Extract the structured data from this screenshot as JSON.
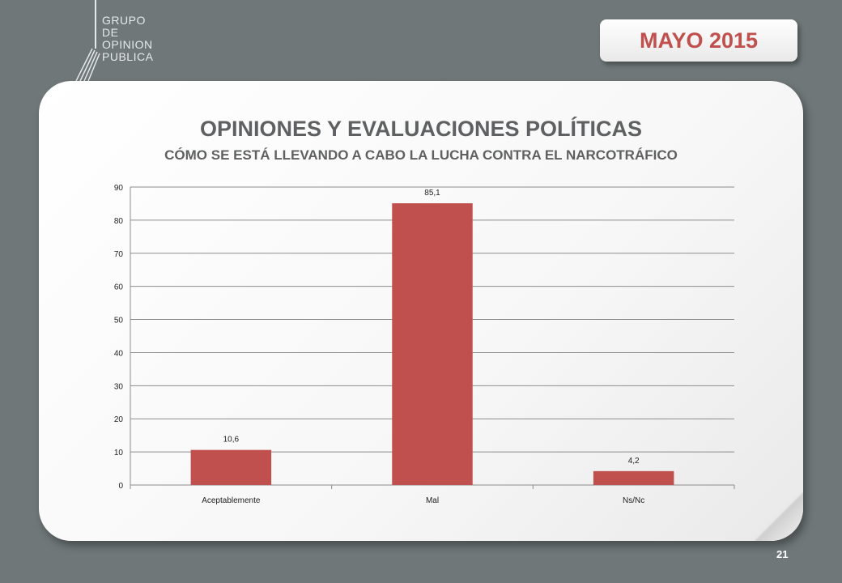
{
  "logo": {
    "lines": [
      "GRUPO",
      "DE",
      "OPINION",
      "PUBLICA"
    ]
  },
  "date_badge": "MAYO 2015",
  "page_number": "21",
  "colors": {
    "bar": "#c0504d",
    "background": "#6f7778",
    "title": "#5f6061"
  },
  "chart_data": {
    "type": "bar",
    "title": "OPINIONES Y EVALUACIONES POLÍTICAS",
    "subtitle": "CÓMO SE ESTÁ LLEVANDO A CABO LA LUCHA CONTRA EL NARCOTRÁFICO",
    "categories": [
      "Aceptablemente",
      "Mal",
      "Ns/Nc"
    ],
    "values": [
      10.6,
      85.1,
      4.2
    ],
    "value_labels": [
      "10,6",
      "85,1",
      "4,2"
    ],
    "ylim": [
      0,
      90
    ],
    "yticks": [
      0,
      10,
      20,
      30,
      40,
      50,
      60,
      70,
      80,
      90
    ],
    "grid": true,
    "legend": "none"
  }
}
